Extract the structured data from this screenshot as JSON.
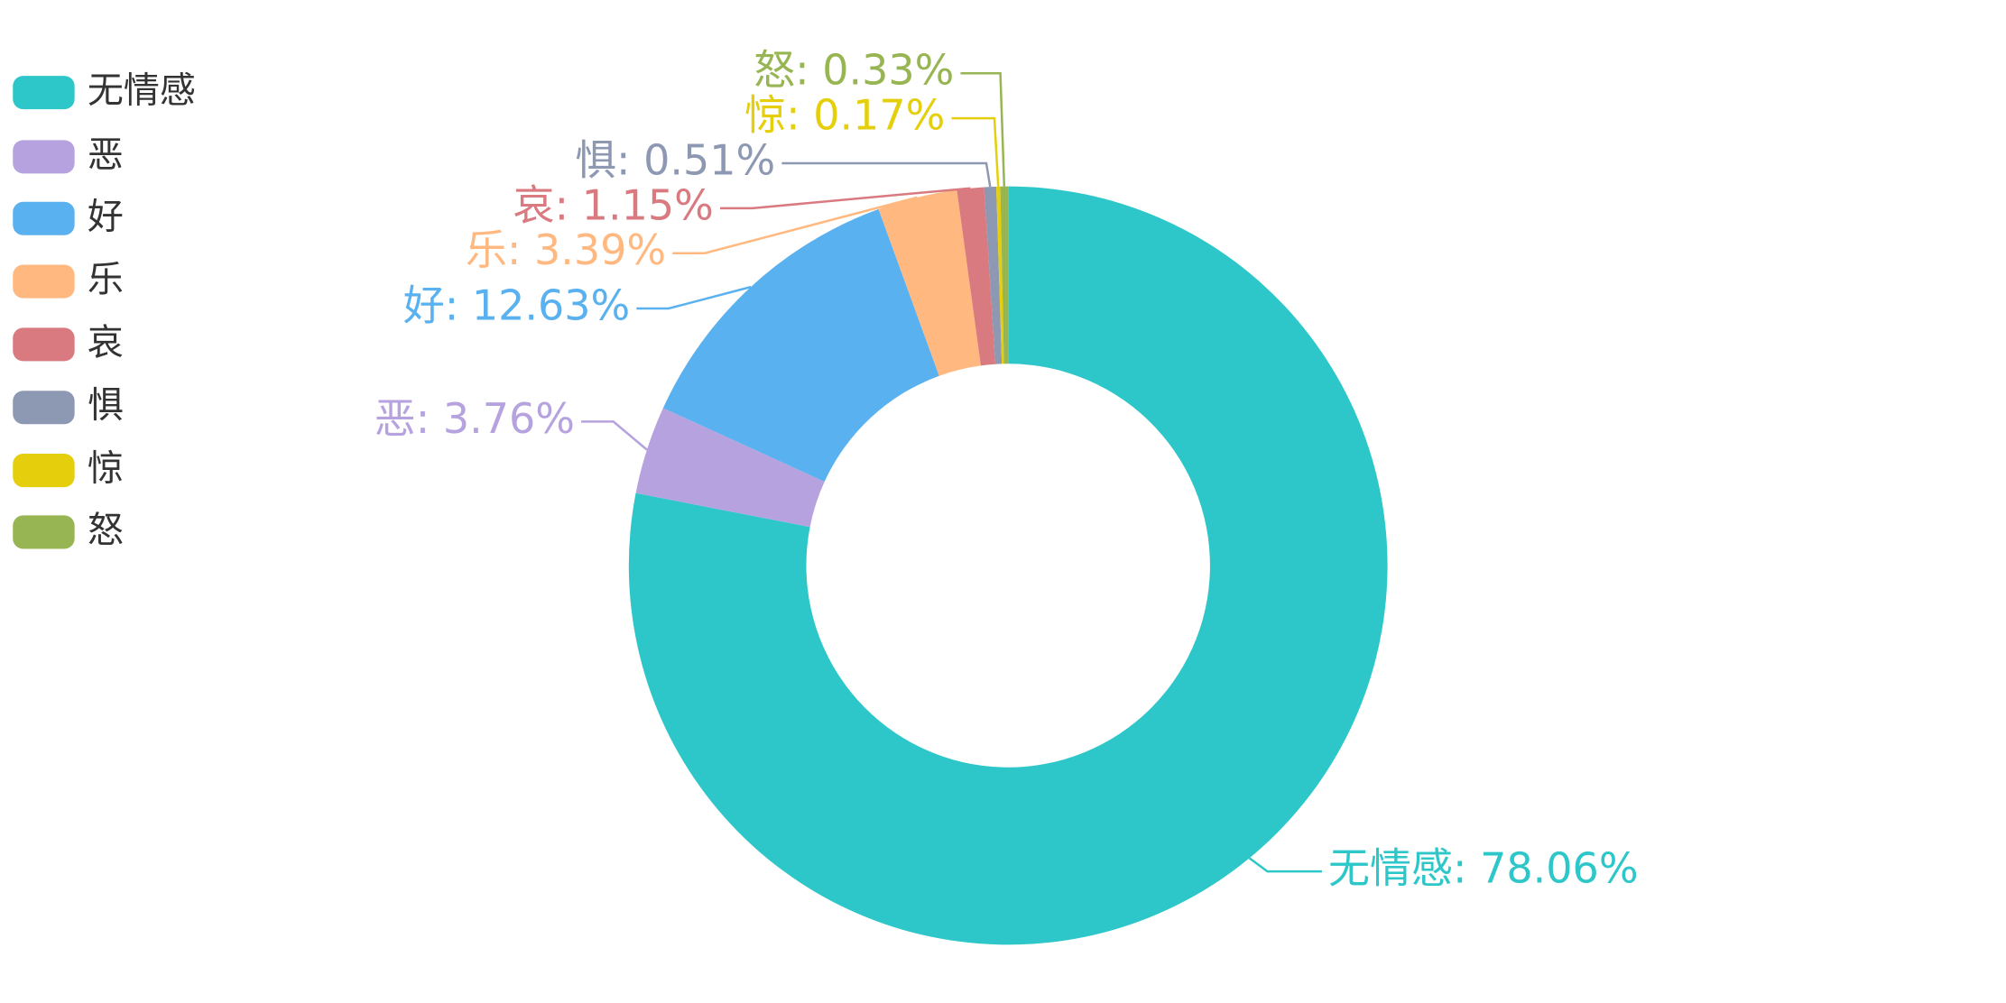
{
  "chart_data": {
    "type": "pie",
    "categories": [
      "无情感",
      "恶",
      "好",
      "乐",
      "哀",
      "惧",
      "惊",
      "怒"
    ],
    "values": [
      78.06,
      3.76,
      12.63,
      3.39,
      1.15,
      0.51,
      0.17,
      0.33
    ],
    "value_labels": [
      "无情感: 78.06%",
      "恶: 3.76%",
      "好: 12.63%",
      "乐: 3.39%",
      "哀: 1.15%",
      "惧: 0.51%",
      "惊: 0.17%",
      "怒: 0.33%"
    ],
    "colors": [
      "#2ec7c9",
      "#b6a2de",
      "#5ab1ef",
      "#ffb980",
      "#d87a80",
      "#8d98b3",
      "#e5cf0d",
      "#97b552"
    ],
    "legend": "top-left",
    "donut": true
  }
}
